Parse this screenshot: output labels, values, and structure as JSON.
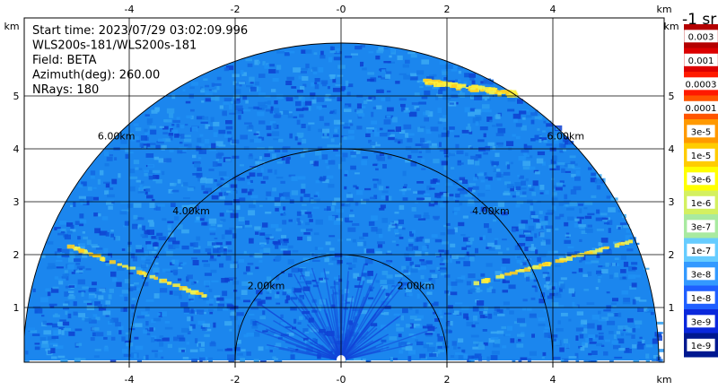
{
  "chart_data": {
    "type": "heatmap",
    "subtype": "lidar-rhi-scan",
    "info_lines": [
      "Start time: 2023/07/29 03:02:09.996",
      "WLS200s-181/WLS200s-181",
      "Field: BETA",
      "Azimuth(deg): 260.00",
      "NRays: 180"
    ],
    "x_unit": "km",
    "y_unit": "km",
    "xlim": [
      -6,
      6
    ],
    "ylim": [
      0,
      6
    ],
    "x_ticks": [
      {
        "value": -4,
        "label": "-4"
      },
      {
        "value": -2,
        "label": "-2"
      },
      {
        "value": 0,
        "label": "-0"
      },
      {
        "value": 2,
        "label": "2"
      },
      {
        "value": 4,
        "label": "4"
      }
    ],
    "y_ticks": [
      {
        "value": 1,
        "label": "1"
      },
      {
        "value": 2,
        "label": "2"
      },
      {
        "value": 3,
        "label": "3"
      },
      {
        "value": 4,
        "label": "4"
      },
      {
        "value": 5,
        "label": "5"
      }
    ],
    "max_range_km": 6.0,
    "range_rings": [
      {
        "radius": 2,
        "label": "2.00km"
      },
      {
        "radius": 4,
        "label": "4.00km"
      },
      {
        "radius": 6,
        "label": "6.00km"
      }
    ],
    "grid": true,
    "colorbar": {
      "title": "-1 sr",
      "labels": [
        "0.003",
        "0.001",
        "0.0003",
        "0.0001",
        "3e-5",
        "1e-5",
        "3e-6",
        "1e-6",
        "3e-7",
        "1e-7",
        "3e-8",
        "1e-8",
        "3e-9",
        "1e-9"
      ],
      "colors": [
        "#b40000",
        "#dc0000",
        "#ff1a00",
        "#ff5500",
        "#ff9900",
        "#ffcc00",
        "#ffff00",
        "#d4f060",
        "#a8eaa0",
        "#66ccff",
        "#3399ff",
        "#1f5fff",
        "#0a28dc",
        "#001890"
      ]
    },
    "field_colors": {
      "background": "#1b86ee",
      "noise": [
        "#1267e2",
        "#1f90f3",
        "#2a9cf0",
        "#1478e6",
        "#0c55da",
        "#3aa9f3",
        "#0d3fd0"
      ],
      "aerosol_layer": [
        "#ffef3a",
        "#e8f25a",
        "#ffcf20"
      ],
      "near_range": "#1244d8"
    },
    "features": [
      {
        "name": "aerosol-layer-upper",
        "x_range": [
          1.5,
          3.3
        ],
        "y_range": [
          5.0,
          5.3
        ],
        "level": "1e-5"
      },
      {
        "name": "streak-right",
        "x_range": [
          2.5,
          5.5
        ],
        "y_range": [
          1.5,
          2.3
        ],
        "level": "1e-6"
      },
      {
        "name": "streak-left",
        "x_range": [
          -5.2,
          -2.5
        ],
        "y_range": [
          1.2,
          2.2
        ],
        "level": "1e-6"
      }
    ]
  }
}
